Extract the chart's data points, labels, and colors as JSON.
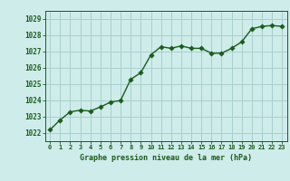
{
  "x": [
    0,
    1,
    2,
    3,
    4,
    5,
    6,
    7,
    8,
    9,
    10,
    11,
    12,
    13,
    14,
    15,
    16,
    17,
    18,
    19,
    20,
    21,
    22,
    23
  ],
  "y": [
    1022.2,
    1022.8,
    1023.3,
    1023.4,
    1023.35,
    1023.6,
    1023.9,
    1024.0,
    1025.3,
    1025.7,
    1026.8,
    1027.3,
    1027.2,
    1027.35,
    1027.2,
    1027.2,
    1026.9,
    1026.9,
    1027.2,
    1027.6,
    1028.4,
    1028.55,
    1028.6,
    1028.55
  ],
  "line_color": "#1a5c1a",
  "marker_color": "#1a5c1a",
  "bg_color": "#ceecea",
  "grid_color": "#aacfcc",
  "xlabel": "Graphe pression niveau de la mer (hPa)",
  "xlabel_color": "#1a5c1a",
  "tick_color": "#1a5c1a",
  "ylim_min": 1021.5,
  "ylim_max": 1029.5,
  "yticks": [
    1022,
    1023,
    1024,
    1025,
    1026,
    1027,
    1028,
    1029
  ],
  "xticks": [
    0,
    1,
    2,
    3,
    4,
    5,
    6,
    7,
    8,
    9,
    10,
    11,
    12,
    13,
    14,
    15,
    16,
    17,
    18,
    19,
    20,
    21,
    22,
    23
  ],
  "marker_size": 2.8,
  "line_width": 1.0
}
